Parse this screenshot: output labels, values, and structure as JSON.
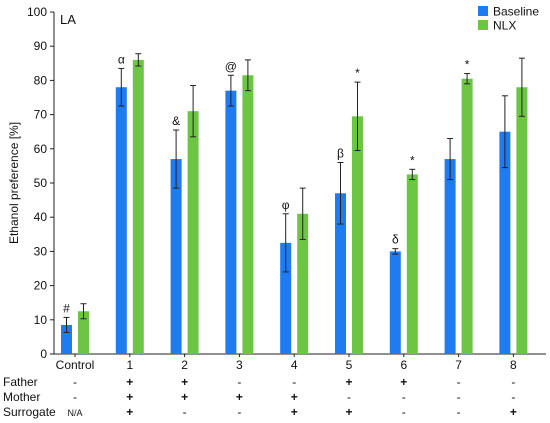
{
  "chart_data": {
    "type": "bar",
    "panel_label": "LA",
    "ylabel": "Ethanol preference [%]",
    "ylim": [
      0,
      100
    ],
    "yticks": [
      0,
      10,
      20,
      30,
      40,
      50,
      60,
      70,
      80,
      90,
      100
    ],
    "grid": false,
    "legend_position": "top-right",
    "categories": [
      "Control",
      "1",
      "2",
      "3",
      "4",
      "5",
      "6",
      "7",
      "8"
    ],
    "series": [
      {
        "name": "Baseline",
        "color": "#1e7bf0",
        "values": [
          8.5,
          78,
          57,
          77,
          32.5,
          47,
          30,
          57,
          65
        ],
        "errors": [
          2.2,
          5.5,
          8.5,
          4.5,
          8.5,
          9,
          0.8,
          6,
          10.5
        ],
        "annotations": [
          "#",
          "α",
          "&",
          "@",
          "φ",
          "β",
          "δ",
          "",
          ""
        ]
      },
      {
        "name": "NLX",
        "color": "#6cc644",
        "values": [
          12.5,
          86,
          71,
          81.5,
          41,
          69.5,
          52.5,
          80.5,
          78
        ],
        "errors": [
          2.2,
          1.8,
          7.5,
          4.5,
          7.5,
          10,
          1.5,
          1.5,
          8.5
        ],
        "annotations": [
          "",
          "",
          "",
          "",
          "",
          "*",
          "*",
          "*",
          ""
        ]
      }
    ],
    "parents_table": [
      {
        "label": "Father",
        "values": [
          "-",
          "+",
          "+",
          "-",
          "-",
          "+",
          "+",
          "-",
          "-"
        ]
      },
      {
        "label": "Mother",
        "values": [
          "-",
          "+",
          "+",
          "+",
          "+",
          "-",
          "-",
          "-",
          "-"
        ]
      },
      {
        "label": "Surrogate",
        "values": [
          "N/A",
          "+",
          "-",
          "-",
          "+",
          "+",
          "-",
          "-",
          "+"
        ]
      }
    ]
  }
}
